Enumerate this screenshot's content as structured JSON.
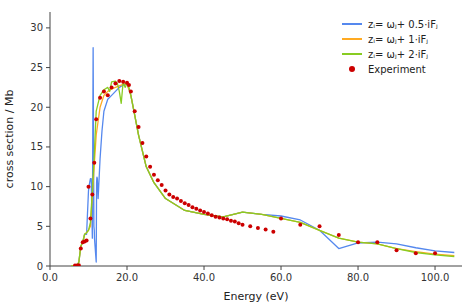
{
  "chart_data": {
    "type": "line",
    "xlabel": "Energy (eV)",
    "ylabel": "cross section / Mb",
    "xlim": [
      0,
      107
    ],
    "ylim": [
      0,
      32
    ],
    "xticks": [
      {
        "value": 0.0,
        "label": "0.0"
      },
      {
        "value": 20.0,
        "label": "20.0"
      },
      {
        "value": 40.0,
        "label": "40.0"
      },
      {
        "value": 60.0,
        "label": "60.0"
      },
      {
        "value": 80.0,
        "label": "80.0"
      },
      {
        "value": 100.0,
        "label": "100.0"
      }
    ],
    "yticks": [
      0,
      5,
      10,
      15,
      20,
      25,
      30
    ],
    "grid": false,
    "legend": "upper right",
    "series": [
      {
        "name": "zᵢ= ωⱼ+ 0.5·iFⱼ",
        "color": "#5588ee",
        "x": [
          5.5,
          6.0,
          7.0,
          7.5,
          8.0,
          8.5,
          9.0,
          9.5,
          10.0,
          10.3,
          10.5,
          10.7,
          11.0,
          11.2,
          11.4,
          11.5,
          11.55,
          12.0,
          12.1,
          12.15,
          12.2,
          12.3,
          12.5,
          13.0,
          13.5,
          14.0,
          15.0,
          16.0,
          17.0,
          18.0,
          19.0,
          20.0,
          21.0,
          22.0,
          23.0,
          25.0,
          27.0,
          30.0,
          35.0,
          40.0,
          45.0,
          50.0,
          55.0,
          60.0,
          65.0,
          70.0,
          75.0,
          80.0,
          85.0,
          90.0,
          95.0,
          100.0,
          105.0
        ],
        "values": [
          0.0,
          0.0,
          0.0,
          0.5,
          2.5,
          3.0,
          4.0,
          4.0,
          9.5,
          10.5,
          11.0,
          11.0,
          3.5,
          27.5,
          5.0,
          4.5,
          3.5,
          0.5,
          10.5,
          11.0,
          11.2,
          11.0,
          8.5,
          13.5,
          17.0,
          19.5,
          21.0,
          21.5,
          22.0,
          22.5,
          22.8,
          23.0,
          21.5,
          19.0,
          16.5,
          12.5,
          10.5,
          8.5,
          7.0,
          6.5,
          6.2,
          6.8,
          6.5,
          6.3,
          5.8,
          4.5,
          2.2,
          2.9,
          3.0,
          2.8,
          2.3,
          1.9,
          1.7
        ]
      },
      {
        "name": "zᵢ= ωⱼ+ 1·iFⱼ",
        "color": "#ffaa22",
        "x": [
          5.5,
          6.0,
          7.0,
          7.5,
          8.0,
          8.5,
          9.0,
          9.5,
          10.0,
          10.5,
          11.0,
          12.0,
          13.0,
          14.0,
          15.0,
          16.0,
          17.0,
          18.0,
          19.0,
          20.0,
          21.0,
          22.0,
          23.0,
          25.0,
          27.0,
          30.0,
          35.0,
          40.0,
          45.0,
          50.0,
          55.0,
          60.0,
          65.0,
          70.0,
          75.0,
          80.0,
          85.0,
          90.0,
          95.0,
          100.0,
          105.0
        ],
        "values": [
          0.0,
          0.0,
          0.0,
          0.5,
          2.5,
          3.0,
          4.0,
          4.2,
          4.5,
          5.0,
          9.0,
          16.5,
          20.0,
          21.5,
          22.0,
          22.3,
          22.5,
          22.7,
          22.9,
          23.0,
          21.5,
          19.0,
          16.5,
          12.5,
          10.5,
          8.5,
          7.0,
          6.5,
          6.2,
          6.8,
          6.5,
          6.0,
          5.5,
          4.5,
          3.5,
          3.0,
          2.8,
          2.2,
          1.8,
          1.5,
          1.3
        ]
      },
      {
        "name": "zᵢ= ωⱼ+ 2·iFⱼ",
        "color": "#88cc22",
        "x": [
          5.5,
          6.0,
          7.0,
          7.5,
          8.0,
          8.5,
          9.0,
          9.5,
          10.0,
          10.5,
          11.0,
          11.5,
          12.0,
          13.0,
          14.0,
          15.0,
          15.5,
          16.0,
          17.0,
          17.5,
          18.0,
          18.5,
          19.0,
          19.5,
          20.0,
          20.5,
          21.0,
          22.0,
          23.0,
          25.0,
          27.0,
          30.0,
          35.0,
          40.0,
          45.0,
          50.0,
          55.0,
          60.0,
          65.0,
          70.0,
          75.0,
          80.0,
          85.0,
          90.0,
          95.0,
          100.0,
          105.0
        ],
        "values": [
          0.0,
          0.0,
          0.0,
          0.5,
          2.5,
          3.0,
          4.0,
          4.2,
          4.5,
          5.5,
          9.5,
          14.0,
          19.5,
          21.5,
          22.2,
          22.5,
          22.0,
          23.2,
          23.3,
          23.0,
          22.0,
          20.5,
          23.2,
          22.5,
          23.0,
          22.5,
          21.5,
          19.0,
          16.5,
          12.5,
          10.5,
          8.5,
          7.0,
          6.5,
          6.2,
          6.8,
          6.5,
          6.0,
          5.5,
          4.5,
          3.5,
          3.0,
          2.8,
          2.2,
          1.7,
          1.4,
          1.2
        ]
      },
      {
        "name": "Experiment",
        "color": "#cc0000",
        "type": "scatter",
        "marker": "circle",
        "x": [
          6.5,
          7.0,
          7.5,
          8.0,
          8.5,
          9.0,
          9.5,
          10.0,
          10.5,
          11.0,
          11.5,
          12.0,
          13.0,
          14.0,
          15.0,
          16.0,
          17.0,
          18.0,
          19.0,
          20.0,
          20.5,
          21.0,
          22.0,
          23.0,
          24.0,
          25.0,
          26.0,
          27.0,
          28.0,
          29.0,
          30.0,
          31.0,
          32.0,
          33.0,
          34.0,
          35.0,
          36.0,
          37.0,
          38.0,
          39.0,
          40.0,
          41.0,
          42.0,
          43.0,
          44.0,
          45.0,
          46.0,
          47.0,
          48.0,
          49.0,
          50.0,
          52.0,
          54.0,
          56.0,
          58.0,
          60.0,
          65.0,
          70.0,
          75.0,
          80.0,
          85.0,
          90.0,
          95.0,
          100.0
        ],
        "values": [
          0.05,
          0.05,
          0.1,
          2.2,
          3.0,
          3.1,
          3.2,
          10.0,
          6.0,
          9.0,
          13.0,
          18.5,
          21.2,
          22.0,
          21.5,
          22.5,
          23.0,
          23.3,
          23.2,
          23.1,
          22.8,
          22.0,
          19.5,
          17.5,
          15.5,
          13.8,
          12.5,
          11.5,
          10.8,
          10.2,
          9.5,
          9.0,
          8.7,
          8.5,
          8.2,
          7.9,
          7.7,
          7.4,
          7.2,
          7.0,
          6.8,
          6.6,
          6.4,
          6.2,
          6.1,
          6.0,
          5.9,
          5.7,
          5.6,
          5.4,
          5.2,
          5.0,
          4.8,
          4.6,
          4.3,
          6.0,
          5.2,
          5.0,
          3.9,
          3.0,
          3.0,
          2.0,
          1.6,
          1.6
        ]
      }
    ]
  }
}
